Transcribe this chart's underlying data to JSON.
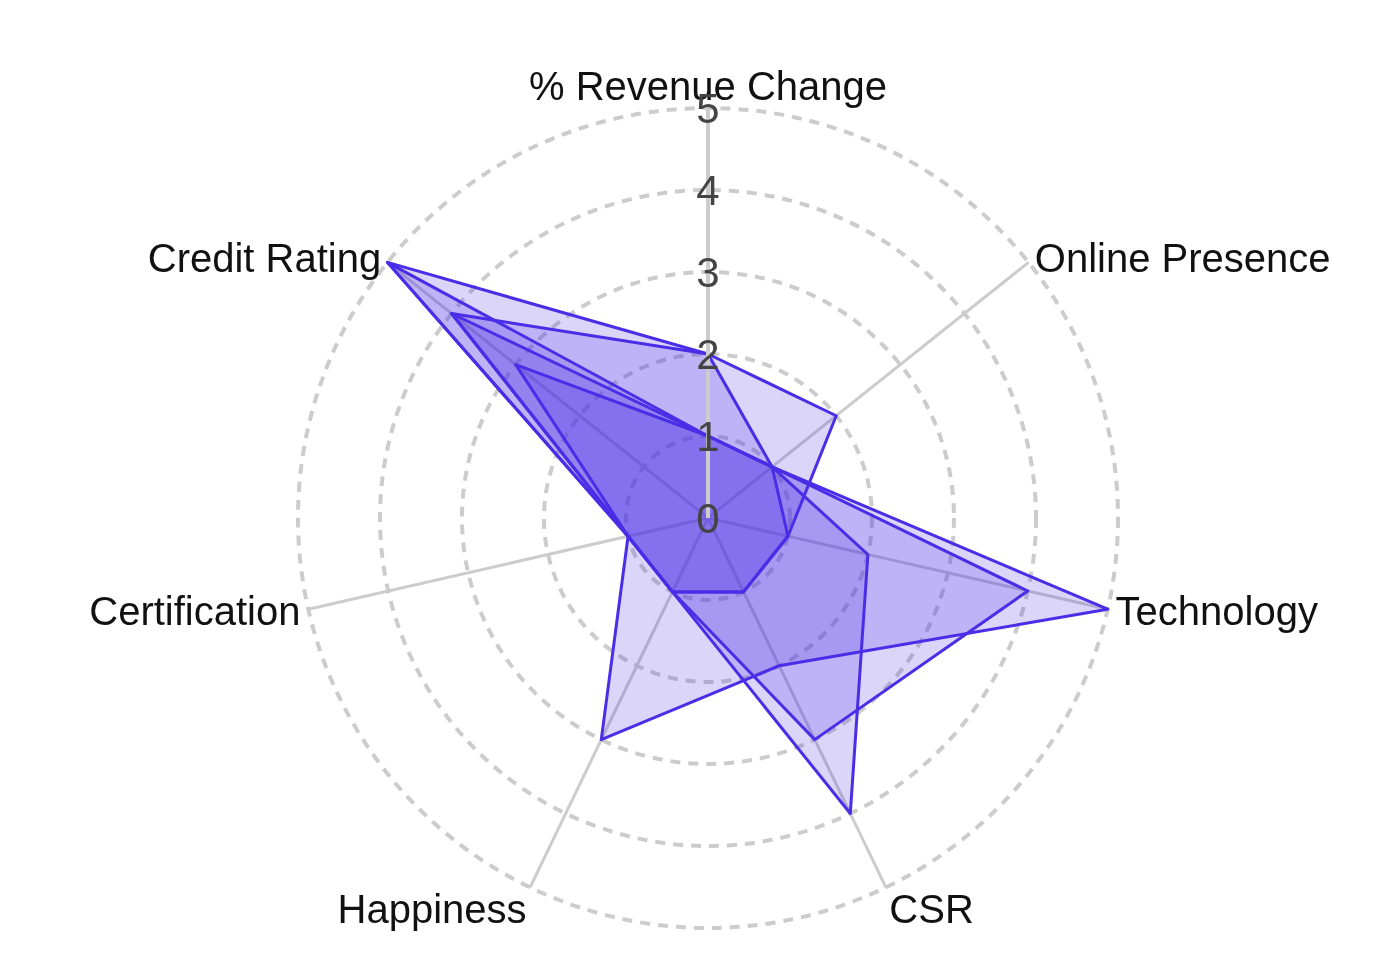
{
  "chart_data": {
    "type": "radar",
    "categories": [
      "% Revenue Change",
      "Online Presence",
      "Technology",
      "CSR",
      "Happiness",
      "Certification",
      "Credit Rating"
    ],
    "series": [
      {
        "color": "#4a2de6",
        "values": [
          2,
          1,
          1,
          1,
          1,
          1,
          5
        ]
      },
      {
        "color": "#4a2de6",
        "values": [
          2,
          2,
          1,
          1,
          1,
          1,
          4
        ]
      },
      {
        "color": "#4a2de6",
        "values": [
          1,
          1,
          2,
          4,
          1,
          1,
          4
        ]
      },
      {
        "color": "#4a2de6",
        "values": [
          1,
          1,
          4,
          3,
          1,
          1,
          3
        ]
      },
      {
        "color": "#4a2de6",
        "values": [
          1,
          1,
          5,
          2,
          3,
          1,
          5
        ]
      }
    ],
    "ylim": [
      0,
      5
    ],
    "yticks": [
      0,
      1,
      2,
      3,
      4,
      5
    ],
    "grid": true,
    "legend": false
  }
}
